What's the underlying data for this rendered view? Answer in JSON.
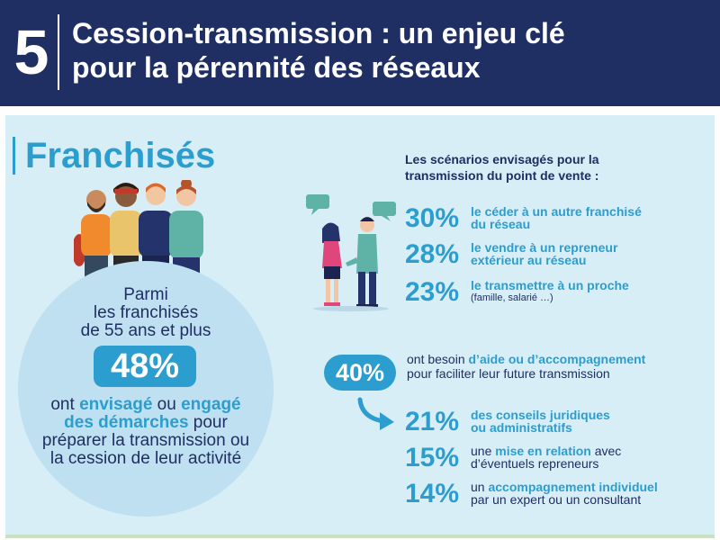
{
  "header": {
    "number": "5",
    "title_line1": "Cession-transmission : un enjeu clé",
    "title_line2": "pour la pérennité des réseaux"
  },
  "section": {
    "title": "Franchisés"
  },
  "circle": {
    "lead_line1": "Parmi",
    "lead_line2": "les franchisés",
    "lead_line3": "de 55 ans et plus",
    "percent": "48%",
    "text_part1": "ont ",
    "text_hl1": "envisagé",
    "text_part2": " ou ",
    "text_hl2": "engagé des démarches",
    "text_part3": " pour préparer la transmission ou la cession de leur activité"
  },
  "scenarios": {
    "title_line1": "Les scénarios envisagés pour la",
    "title_line2": "transmission du point de vente :",
    "items": [
      {
        "percent": "30%",
        "line1": "le céder à un autre franchisé",
        "line2": "du réseau"
      },
      {
        "percent": "28%",
        "line1": "le vendre à un repreneur",
        "line2": "extérieur au réseau"
      },
      {
        "percent": "23%",
        "line1": "le transmettre à un proche",
        "note": "(famille, salarié …)"
      }
    ]
  },
  "support": {
    "percent": "40%",
    "text_part1": "ont besoin ",
    "text_hl": "d’aide ou d’accompagnement",
    "text_part2": "pour faciliter leur future transmission",
    "items": [
      {
        "percent": "21%",
        "hl_line1": "des conseils juridiques",
        "hl_line2": "ou administratifs"
      },
      {
        "percent": "15%",
        "pre": "une ",
        "hl": "mise en relation",
        "post": " avec",
        "line2": "d’éventuels repreneurs"
      },
      {
        "percent": "14%",
        "pre": "un ",
        "hl": "accompagnement individuel",
        "line2": "par un expert ou un consultant"
      }
    ]
  },
  "colors": {
    "header_bg": "#1f2e63",
    "accent_blue": "#2b9ecf",
    "panel_bg": "#d8eef7",
    "circle_bg": "#bfe0f1",
    "text_dark": "#1f2e63"
  }
}
